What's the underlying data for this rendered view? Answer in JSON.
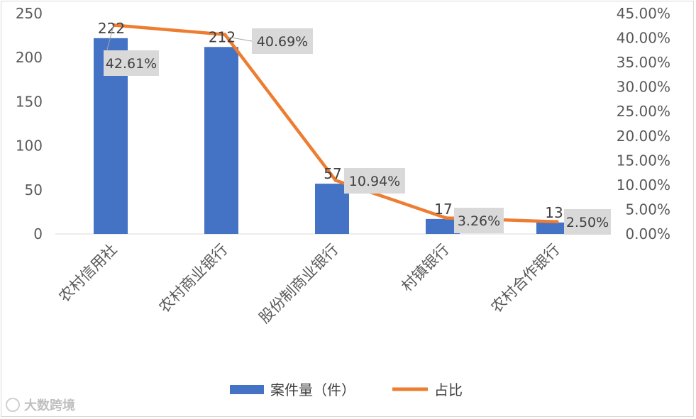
{
  "chart_data": {
    "type": "bar+line",
    "categories": [
      "农村信用社",
      "农村商业银行",
      "股份制商业银行",
      "村镇银行",
      "农村合作银行"
    ],
    "series": [
      {
        "name": "案件量（件）",
        "type": "bar",
        "axis": "left",
        "color": "#4472C4",
        "values": [
          222,
          212,
          57,
          17,
          13
        ],
        "labels": [
          "222",
          "212",
          "57",
          "17",
          "13"
        ]
      },
      {
        "name": "占比",
        "type": "line",
        "axis": "right",
        "color": "#ED7D31",
        "values": [
          42.61,
          40.69,
          10.94,
          3.26,
          2.5
        ],
        "labels": [
          "42.61%",
          "40.69%",
          "10.94%",
          "3.26%",
          "2.50%"
        ]
      }
    ],
    "y_left": {
      "min": 0,
      "max": 250,
      "ticks": [
        "0",
        "50",
        "100",
        "150",
        "200",
        "250"
      ]
    },
    "y_right": {
      "min": 0,
      "max": 45,
      "ticks": [
        "0.00%",
        "5.00%",
        "10.00%",
        "15.00%",
        "20.00%",
        "25.00%",
        "30.00%",
        "35.00%",
        "40.00%",
        "45.00%"
      ]
    },
    "legend_position": "bottom",
    "grid": false
  },
  "watermark": "大数跨境"
}
